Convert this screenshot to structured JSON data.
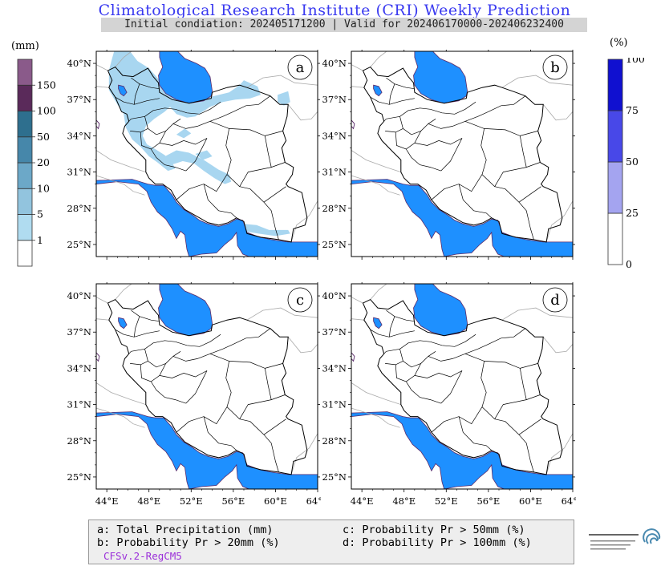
{
  "header": {
    "title": "Climatological Research Institute (CRI) Weekly Prediction",
    "subtitle": "Initial condiation: 202405171200 | Valid for 202406170000-202406232400"
  },
  "legend_left": {
    "unit": "(mm)",
    "levels": [
      "1",
      "5",
      "10",
      "20",
      "50",
      "100",
      "150"
    ],
    "colors": [
      "#ffffff",
      "#b0dcf0",
      "#92c4de",
      "#6ca8c8",
      "#4687aa",
      "#2e6f8e",
      "#5a2a5a",
      "#8a5a8a"
    ]
  },
  "legend_right": {
    "unit": "(%)",
    "levels": [
      "0",
      "25",
      "50",
      "75",
      "100"
    ],
    "colors": [
      "#ffffff",
      "#a4a4f0",
      "#4848e8",
      "#1010d0"
    ]
  },
  "panels": [
    {
      "letter": "a"
    },
    {
      "letter": "b"
    },
    {
      "letter": "c"
    },
    {
      "letter": "d"
    }
  ],
  "axes": {
    "lat_labels": [
      "40°N",
      "37°N",
      "34°N",
      "31°N",
      "28°N",
      "25°N"
    ],
    "lon_labels": [
      "44°E",
      "48°E",
      "52°E",
      "56°E",
      "60°E",
      "64°E"
    ]
  },
  "footer": {
    "line_a": "a: Total Precipitation (mm)",
    "line_b": "b: Probability Pr > 20mm (%)",
    "line_c": "c: Probability Pr > 50mm (%)",
    "line_d": "d: Probability Pr > 100mm (%)",
    "model": "CFSv.2-RegCM5"
  },
  "colors": {
    "sea": "#1e90ff",
    "precip_light": "#a8d6f0",
    "border": "#000000"
  }
}
